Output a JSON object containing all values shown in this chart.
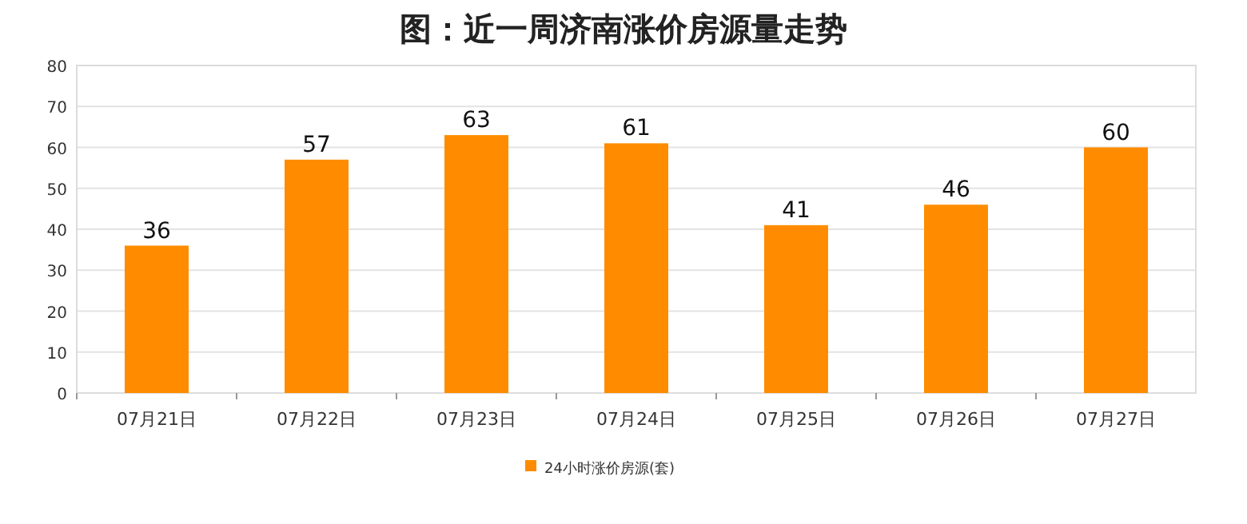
{
  "chart_data": {
    "type": "bar",
    "title": "图：近一周济南涨价房源量走势",
    "categories": [
      "07月21日",
      "07月22日",
      "07月23日",
      "07月24日",
      "07月25日",
      "07月26日",
      "07月27日"
    ],
    "series": [
      {
        "name": "24小时涨价房源(套)",
        "color": "#ff8c00",
        "values": [
          36,
          57,
          63,
          61,
          41,
          46,
          60
        ]
      }
    ],
    "ylim": [
      0,
      80
    ],
    "yticks": [
      0,
      10,
      20,
      30,
      40,
      50,
      60,
      70,
      80
    ],
    "grid": "y",
    "legend": "bottom",
    "data_labels": true
  }
}
